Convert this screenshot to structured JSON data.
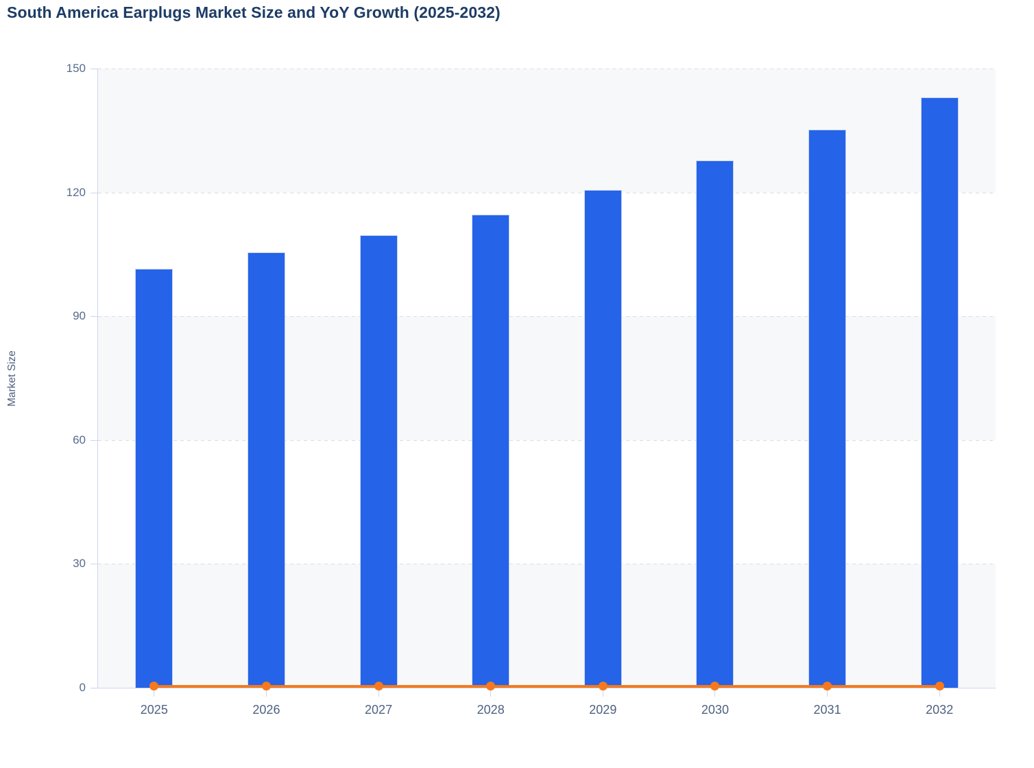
{
  "title": "South America Earplugs Market Size and YoY Growth (2025-2032)",
  "chart_data": {
    "type": "bar",
    "title": "South America Earplugs Market Size and YoY Growth (2025-2032)",
    "categories": [
      "2025",
      "2026",
      "2027",
      "2028",
      "2029",
      "2030",
      "2031",
      "2032"
    ],
    "series": [
      {
        "name": "Market Size",
        "type": "bar",
        "color": "#2563e8",
        "values": [
          101.5,
          105.4,
          109.6,
          114.6,
          120.6,
          127.7,
          135.2,
          143.0
        ]
      },
      {
        "name": "YoY Growth",
        "type": "line",
        "color": "#f5791d",
        "values": [
          0,
          0,
          0,
          0,
          0,
          0,
          0,
          0
        ]
      }
    ],
    "xlabel": "",
    "ylabel": "Market Size",
    "ylim": [
      0,
      150
    ],
    "yticks": [
      0,
      30,
      60,
      90,
      120,
      150
    ],
    "grid": "horizontal-dashed",
    "legend": "none",
    "plot_bands": {
      "color": "#f7f8fa",
      "ranges": [
        [
          0,
          30
        ],
        [
          60,
          90
        ],
        [
          120,
          150
        ]
      ]
    }
  },
  "colors": {
    "bar": "#2563e8",
    "line": "#f5791d",
    "band": "#f7f8fa",
    "axis": "#ccd5ea",
    "grid": "#d9dde6",
    "title_text": "#1d3c66",
    "tick_text": "#566b8d"
  }
}
